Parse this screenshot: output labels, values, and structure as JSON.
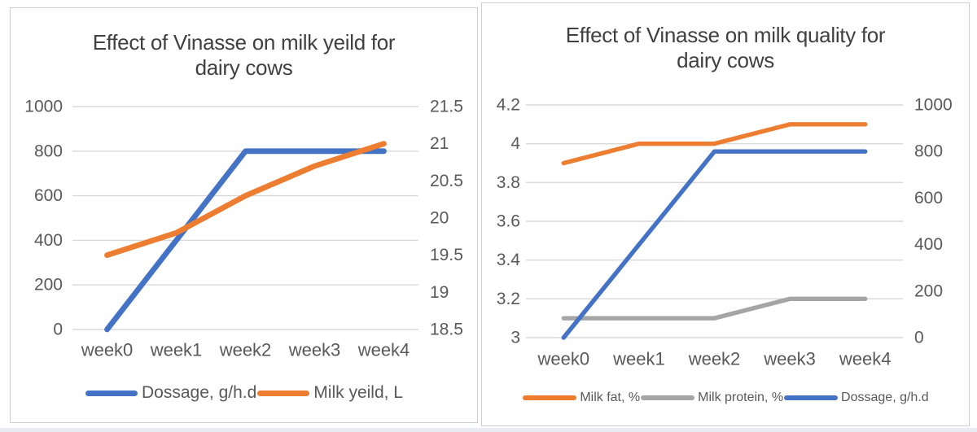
{
  "colors": {
    "accent_blue": "#4472C4",
    "accent_orange": "#ED7D31",
    "accent_gray": "#A5A5A5",
    "gridline": "#D9D9D9",
    "tick_text": "#595959",
    "title_text": "#404040"
  },
  "chart_data": [
    {
      "type": "line",
      "title": "Effect of Vinasse on milk yeild for dairy cows",
      "title_lines": [
        "Effect of Vinasse on milk yeild for",
        "dairy cows"
      ],
      "categories": [
        "week0",
        "week1",
        "week2",
        "week3",
        "week4"
      ],
      "xlabel": "",
      "grid": true,
      "legend_position": "bottom",
      "primary_axis": {
        "min": 0,
        "max": 1000,
        "ticks": [
          "0",
          "200",
          "400",
          "600",
          "800",
          "1000"
        ]
      },
      "secondary_axis": {
        "min": 18.5,
        "max": 21.5,
        "ticks": [
          "18.5",
          "19",
          "19.5",
          "20",
          "20.5",
          "21",
          "21.5"
        ]
      },
      "series": [
        {
          "name": "Dossage, g/h.d",
          "axis": "primary",
          "color": "#4472C4",
          "values": [
            0,
            400,
            800,
            800,
            800
          ]
        },
        {
          "name": "Milk yeild, L",
          "axis": "secondary",
          "color": "#ED7D31",
          "values": [
            19.5,
            19.8,
            20.3,
            20.7,
            21
          ]
        }
      ]
    },
    {
      "type": "line",
      "title": "Effect of Vinasse on milk quality for dairy cows",
      "title_lines": [
        "Effect of Vinasse on milk quality for",
        "dairy cows"
      ],
      "categories": [
        "week0",
        "week1",
        "week2",
        "week3",
        "week4"
      ],
      "xlabel": "",
      "grid": true,
      "legend_position": "bottom",
      "primary_axis": {
        "min": 3,
        "max": 4.2,
        "ticks": [
          "3",
          "3.2",
          "3.4",
          "3.6",
          "3.8",
          "4",
          "4.2"
        ]
      },
      "secondary_axis": {
        "min": 0,
        "max": 1000,
        "ticks": [
          "0",
          "200",
          "400",
          "600",
          "800",
          "1000"
        ]
      },
      "series": [
        {
          "name": "Milk fat, %",
          "axis": "primary",
          "color": "#ED7D31",
          "values": [
            3.9,
            4,
            4,
            4.1,
            4.1
          ]
        },
        {
          "name": "Milk protein, %",
          "axis": "primary",
          "color": "#A5A5A5",
          "values": [
            3.1,
            3.1,
            3.1,
            3.2,
            3.2
          ]
        },
        {
          "name": "Dossage, g/h.d",
          "axis": "secondary",
          "color": "#4472C4",
          "values": [
            0,
            400,
            800,
            800,
            800
          ]
        }
      ]
    }
  ]
}
